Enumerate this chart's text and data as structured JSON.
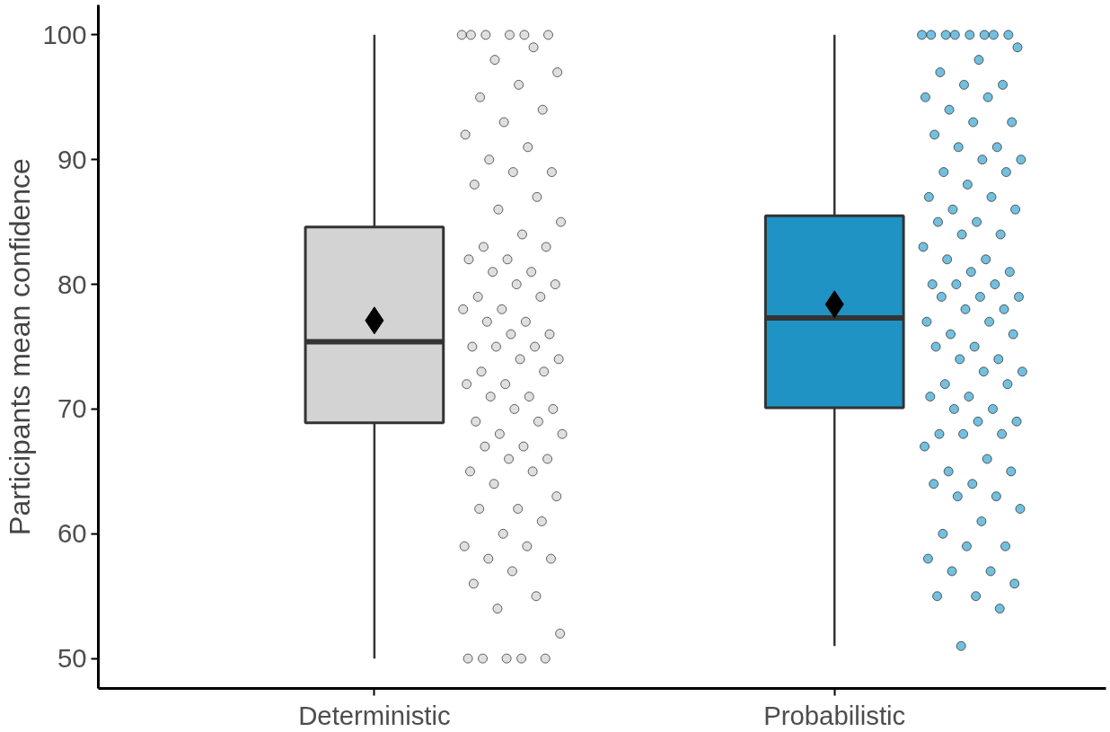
{
  "chart_data": {
    "type": "box",
    "ylabel": "Participants mean confidence",
    "categories": [
      "Deterministic",
      "Probabilistic"
    ],
    "ylim": [
      47.6,
      102.4
    ],
    "yticks": [
      50,
      60,
      70,
      80,
      90,
      100
    ],
    "grid": false,
    "marker": "circle",
    "series": [
      {
        "colors": [
          "#d3d3d3",
          "#1f93c4"
        ],
        "boxes": [
          {
            "low": 50,
            "q1": 68.9,
            "median": 75.4,
            "q3": 84.6,
            "high": 100,
            "mean": 77.1
          },
          {
            "low": 51,
            "q1": 70.1,
            "median": 77.3,
            "q3": 85.5,
            "high": 100,
            "mean": 78.4
          }
        ]
      },
      {
        "type": "scatter",
        "color": "#d9d9d9",
        "x": [
          "Deterministic",
          "Deterministic",
          "Deterministic",
          "Deterministic",
          "Deterministic",
          "Deterministic",
          "Deterministic",
          "Deterministic",
          "Deterministic",
          "Deterministic",
          "Deterministic",
          "Deterministic",
          "Deterministic",
          "Deterministic",
          "Deterministic",
          "Deterministic",
          "Deterministic",
          "Deterministic",
          "Deterministic",
          "Deterministic",
          "Deterministic",
          "Deterministic",
          "Deterministic",
          "Deterministic",
          "Deterministic",
          "Deterministic",
          "Deterministic",
          "Deterministic",
          "Deterministic",
          "Deterministic",
          "Deterministic",
          "Deterministic",
          "Deterministic",
          "Deterministic",
          "Deterministic",
          "Deterministic",
          "Deterministic",
          "Deterministic",
          "Deterministic",
          "Deterministic",
          "Deterministic",
          "Deterministic",
          "Deterministic",
          "Deterministic",
          "Deterministic",
          "Deterministic",
          "Deterministic",
          "Deterministic",
          "Deterministic",
          "Deterministic",
          "Deterministic",
          "Deterministic",
          "Deterministic",
          "Deterministic",
          "Deterministic",
          "Deterministic",
          "Deterministic",
          "Deterministic",
          "Deterministic",
          "Deterministic",
          "Deterministic",
          "Deterministic",
          "Deterministic",
          "Deterministic",
          "Deterministic",
          "Deterministic",
          "Deterministic",
          "Deterministic",
          "Deterministic",
          "Deterministic",
          "Deterministic",
          "Deterministic",
          "Deterministic",
          "Deterministic",
          "Deterministic",
          "Deterministic",
          "Deterministic",
          "Deterministic",
          "Deterministic",
          "Deterministic",
          "Deterministic",
          "Deterministic"
        ],
        "values": [
          100,
          100,
          100,
          100,
          100,
          100,
          99,
          98,
          97,
          96,
          95,
          94,
          93,
          92,
          91,
          90,
          89,
          89,
          88,
          87,
          86,
          85,
          84,
          83,
          83,
          82,
          82,
          81,
          81,
          80,
          80,
          79,
          79,
          78,
          78,
          77,
          77,
          76,
          76,
          75,
          75,
          75,
          74,
          74,
          73,
          73,
          72,
          72,
          71,
          71,
          70,
          70,
          69,
          69,
          68,
          68,
          67,
          67,
          66,
          66,
          65,
          65,
          64,
          63,
          62,
          62,
          61,
          60,
          59,
          59,
          58,
          58,
          57,
          56,
          55,
          54,
          52,
          50,
          50,
          50,
          50,
          50
        ]
      },
      {
        "type": "scatter",
        "color": "#5ab4d8",
        "x": [
          "Probabilistic",
          "Probabilistic",
          "Probabilistic",
          "Probabilistic",
          "Probabilistic",
          "Probabilistic",
          "Probabilistic",
          "Probabilistic",
          "Probabilistic",
          "Probabilistic",
          "Probabilistic",
          "Probabilistic",
          "Probabilistic",
          "Probabilistic",
          "Probabilistic",
          "Probabilistic",
          "Probabilistic",
          "Probabilistic",
          "Probabilistic",
          "Probabilistic",
          "Probabilistic",
          "Probabilistic",
          "Probabilistic",
          "Probabilistic",
          "Probabilistic",
          "Probabilistic",
          "Probabilistic",
          "Probabilistic",
          "Probabilistic",
          "Probabilistic",
          "Probabilistic",
          "Probabilistic",
          "Probabilistic",
          "Probabilistic",
          "Probabilistic",
          "Probabilistic",
          "Probabilistic",
          "Probabilistic",
          "Probabilistic",
          "Probabilistic",
          "Probabilistic",
          "Probabilistic",
          "Probabilistic",
          "Probabilistic",
          "Probabilistic",
          "Probabilistic",
          "Probabilistic",
          "Probabilistic",
          "Probabilistic",
          "Probabilistic",
          "Probabilistic",
          "Probabilistic",
          "Probabilistic",
          "Probabilistic",
          "Probabilistic",
          "Probabilistic",
          "Probabilistic",
          "Probabilistic",
          "Probabilistic",
          "Probabilistic",
          "Probabilistic",
          "Probabilistic",
          "Probabilistic",
          "Probabilistic",
          "Probabilistic",
          "Probabilistic",
          "Probabilistic",
          "Probabilistic",
          "Probabilistic",
          "Probabilistic",
          "Probabilistic",
          "Probabilistic",
          "Probabilistic",
          "Probabilistic",
          "Probabilistic",
          "Probabilistic",
          "Probabilistic",
          "Probabilistic",
          "Probabilistic",
          "Probabilistic",
          "Probabilistic",
          "Probabilistic",
          "Probabilistic",
          "Probabilistic",
          "Probabilistic",
          "Probabilistic",
          "Probabilistic",
          "Probabilistic",
          "Probabilistic"
        ],
        "values": [
          100,
          100,
          100,
          100,
          100,
          100,
          100,
          100,
          99,
          98,
          97,
          96,
          96,
          95,
          95,
          94,
          93,
          93,
          92,
          91,
          91,
          90,
          90,
          89,
          89,
          88,
          87,
          87,
          86,
          86,
          85,
          85,
          84,
          84,
          83,
          82,
          82,
          81,
          81,
          80,
          80,
          80,
          79,
          79,
          79,
          78,
          78,
          77,
          77,
          76,
          76,
          75,
          75,
          74,
          74,
          73,
          73,
          72,
          72,
          71,
          71,
          70,
          70,
          69,
          69,
          68,
          68,
          68,
          67,
          66,
          65,
          65,
          64,
          64,
          63,
          63,
          62,
          61,
          60,
          59,
          59,
          58,
          57,
          57,
          56,
          55,
          55,
          54,
          51
        ]
      }
    ]
  }
}
